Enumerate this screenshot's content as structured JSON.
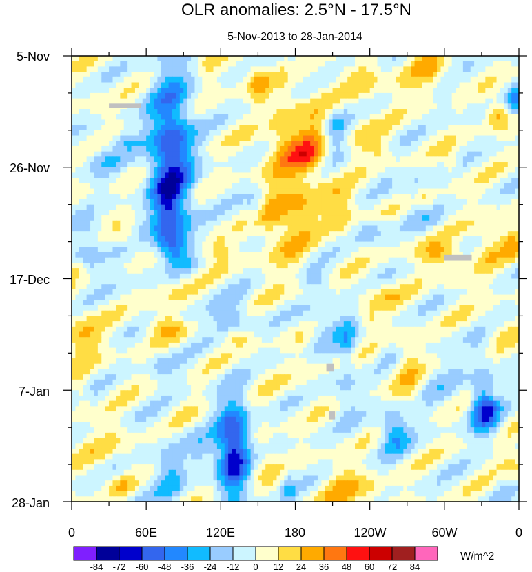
{
  "chart_data": {
    "type": "heatmap",
    "title": "OLR anomalies: 2.5°N - 17.5°N",
    "subtitle": "5-Nov-2013 to 28-Jan-2014",
    "xlabel": "",
    "ylabel": "",
    "x_ticks": [
      "0",
      "60E",
      "120E",
      "180",
      "120W",
      "60W",
      "0"
    ],
    "x_range_deg": [
      0,
      360
    ],
    "y_ticks": [
      "5-Nov",
      "26-Nov",
      "17-Dec",
      "7-Jan",
      "28-Jan"
    ],
    "y_range_days": [
      0,
      84
    ],
    "colorbar": {
      "units": "W/m^2",
      "levels": [
        -84,
        -72,
        -60,
        -48,
        -36,
        -24,
        -12,
        0,
        12,
        24,
        36,
        48,
        60,
        72,
        84
      ],
      "level_labels": [
        "-84",
        "-72",
        "-60",
        "-48",
        "-36",
        "-24",
        "-12",
        "0",
        "12",
        "24",
        "36",
        "48",
        "60",
        "72",
        "84"
      ],
      "colors": [
        "#7f1fff",
        "#000099",
        "#0000cc",
        "#3366ee",
        "#2288ff",
        "#11bbff",
        "#99ccff",
        "#ccf5ff",
        "#ffffcc",
        "#ffdd44",
        "#ffaa00",
        "#ff7711",
        "#ff1111",
        "#cc0000",
        "#a01f1f",
        "#ff66bb"
      ]
    },
    "missing_color": "#c0c0c0",
    "features": [
      {
        "name": "negative band near 60E-100E",
        "lon": [
          60,
          100
        ],
        "days": [
          0,
          40
        ],
        "value": -60
      },
      {
        "name": "positive anomaly near 150E-200E",
        "lon": [
          150,
          200
        ],
        "days": [
          5,
          40
        ],
        "value": 36
      },
      {
        "name": "negative anomaly near 120E",
        "lon": [
          115,
          145
        ],
        "days": [
          64,
          84
        ],
        "value": -72
      },
      {
        "name": "negative anomaly near 30W",
        "lon": [
          320,
          345
        ],
        "days": [
          60,
          72
        ],
        "value": -60
      }
    ]
  }
}
